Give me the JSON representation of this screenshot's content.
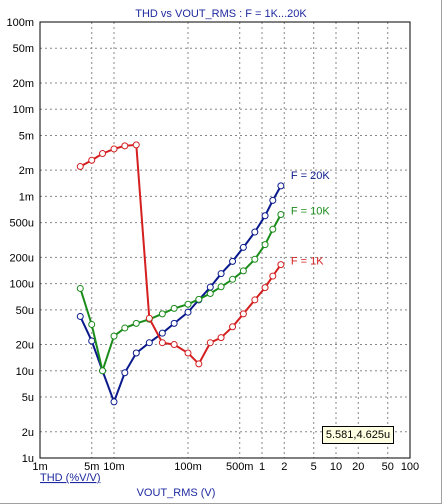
{
  "chart_data": {
    "type": "line",
    "title": "THD vs VOUT_RMS : F = 1K...20K",
    "xlabel": "VOUT_RMS (V)",
    "ylabel": "THD (%V/V)",
    "xscale": "log",
    "yscale": "log",
    "xlim": [
      0.001,
      100
    ],
    "ylim": [
      1e-06,
      0.1
    ],
    "x_ticks": [
      {
        "v": 0.001,
        "label": "1m"
      },
      {
        "v": 0.005,
        "label": "5m"
      },
      {
        "v": 0.01,
        "label": "10m"
      },
      {
        "v": 0.1,
        "label": "100m"
      },
      {
        "v": 0.5,
        "label": "500m"
      },
      {
        "v": 1,
        "label": "1"
      },
      {
        "v": 2,
        "label": "2"
      },
      {
        "v": 5,
        "label": "5"
      },
      {
        "v": 10,
        "label": "10"
      },
      {
        "v": 20,
        "label": "20"
      },
      {
        "v": 50,
        "label": "50"
      },
      {
        "v": 100,
        "label": "100"
      }
    ],
    "y_ticks": [
      {
        "v": 0.1,
        "label": "100m"
      },
      {
        "v": 0.05,
        "label": "50m"
      },
      {
        "v": 0.02,
        "label": "20m"
      },
      {
        "v": 0.01,
        "label": "10m"
      },
      {
        "v": 0.005,
        "label": "5m"
      },
      {
        "v": 0.002,
        "label": "2m"
      },
      {
        "v": 0.001,
        "label": "1m"
      },
      {
        "v": 0.0005,
        "label": "500u"
      },
      {
        "v": 0.0002,
        "label": "200u"
      },
      {
        "v": 0.0001,
        "label": "100u"
      },
      {
        "v": 5e-05,
        "label": "50u"
      },
      {
        "v": 2e-05,
        "label": "20u"
      },
      {
        "v": 1e-05,
        "label": "10u"
      },
      {
        "v": 5e-06,
        "label": "5u"
      },
      {
        "v": 2e-06,
        "label": "2u"
      },
      {
        "v": 1e-06,
        "label": "1u"
      }
    ],
    "grid": true,
    "series": [
      {
        "name": "F = 20K",
        "color": "#0a1a8c",
        "x": [
          0.0035,
          0.005,
          0.007,
          0.01,
          0.014,
          0.02,
          0.03,
          0.045,
          0.065,
          0.1,
          0.14,
          0.2,
          0.28,
          0.4,
          0.56,
          0.8,
          1.1,
          1.4,
          1.8
        ],
        "y": [
          4.2e-05,
          2.2e-05,
          1e-05,
          4.4e-06,
          9.5e-06,
          1.6e-05,
          2.1e-05,
          2.7e-05,
          3.5e-05,
          4.7e-05,
          6.5e-05,
          9.1e-05,
          0.00013,
          0.00018,
          0.00026,
          0.00039,
          0.0006,
          0.0009,
          0.00132
        ]
      },
      {
        "name": "F = 10K",
        "color": "#1a8c1a",
        "x": [
          0.0035,
          0.005,
          0.007,
          0.01,
          0.014,
          0.02,
          0.03,
          0.045,
          0.065,
          0.1,
          0.14,
          0.2,
          0.28,
          0.4,
          0.56,
          0.8,
          1.1,
          1.4,
          1.8
        ],
        "y": [
          8.8e-05,
          3.4e-05,
          1e-05,
          2.5e-05,
          3.1e-05,
          3.5e-05,
          3.9e-05,
          4.5e-05,
          5.2e-05,
          5.8e-05,
          6.6e-05,
          7.7e-05,
          9.2e-05,
          0.000112,
          0.00014,
          0.00019,
          0.00028,
          0.00042,
          0.00062
        ]
      },
      {
        "name": "F = 1K",
        "color": "#d42020",
        "x": [
          0.0035,
          0.005,
          0.007,
          0.01,
          0.014,
          0.02,
          0.03,
          0.045,
          0.065,
          0.1,
          0.14,
          0.2,
          0.28,
          0.4,
          0.56,
          0.8,
          1.1,
          1.4,
          1.8
        ],
        "y": [
          0.0022,
          0.0026,
          0.0031,
          0.0035,
          0.0038,
          0.0039,
          4e-05,
          2.1e-05,
          2e-05,
          1.6e-05,
          1.2e-05,
          2.1e-05,
          2.4e-05,
          3.2e-05,
          4.5e-05,
          6.5e-05,
          9e-05,
          0.000122,
          0.000165
        ]
      }
    ],
    "annotations": [
      "F = 20K",
      "F = 10K",
      "F = 1K"
    ],
    "cursor_readout": "5.581,4.625u"
  }
}
